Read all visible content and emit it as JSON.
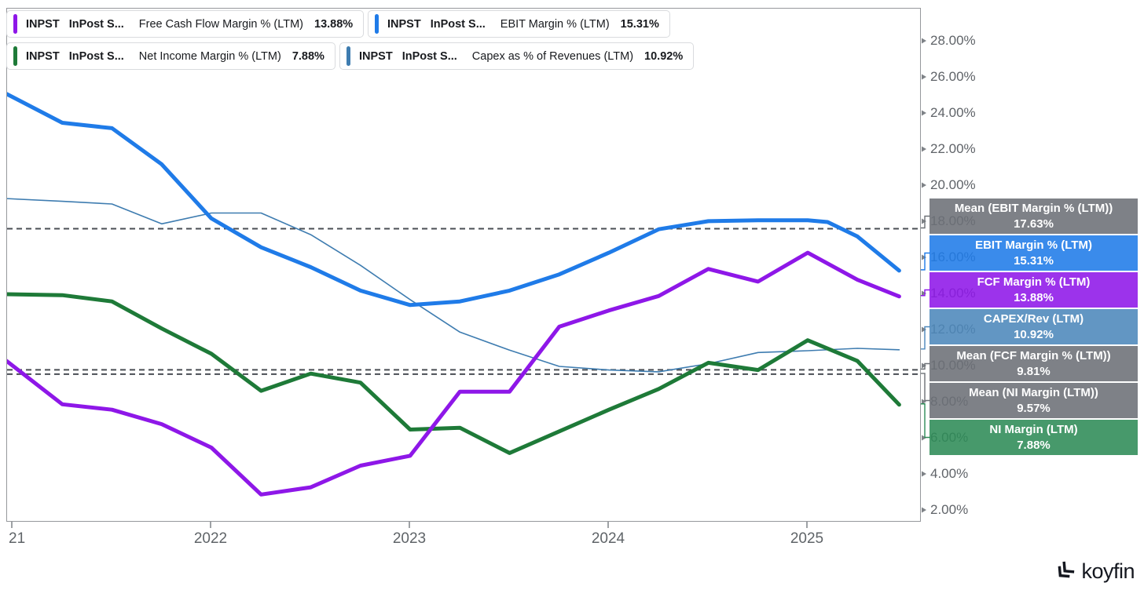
{
  "legend": {
    "items": [
      {
        "ticker": "INPST",
        "company": "InPost S...",
        "metric": "Free Cash Flow Margin % (LTM)",
        "value": "13.88%",
        "accent": "#8e17e8"
      },
      {
        "ticker": "INPST",
        "company": "InPost S...",
        "metric": "EBIT Margin % (LTM)",
        "value": "15.31%",
        "accent": "#1f7be8"
      },
      {
        "ticker": "INPST",
        "company": "InPost S...",
        "metric": "Net Income Margin % (LTM)",
        "value": "7.88%",
        "accent": "#1e7a38"
      },
      {
        "ticker": "INPST",
        "company": "InPost S...",
        "metric": "Capex as % of Revenues (LTM)",
        "value": "10.92%",
        "accent": "#3e7cb0"
      }
    ]
  },
  "side_labels": [
    {
      "title": "Mean (EBIT Margin % (LTM))",
      "value": "17.63%",
      "value_num": 17.63,
      "color": "#6c7076"
    },
    {
      "title": "EBIT Margin % (LTM)",
      "value": "15.31%",
      "value_num": 15.31,
      "color": "#1f7be8"
    },
    {
      "title": "FCF Margin % (LTM)",
      "value": "13.88%",
      "value_num": 13.88,
      "color": "#8e17e8"
    },
    {
      "title": "CAPEX/Rev (LTM)",
      "value": "10.92%",
      "value_num": 10.92,
      "color": "#4c87bb"
    },
    {
      "title": "Mean (FCF Margin % (LTM))",
      "value": "9.81%",
      "value_num": 9.81,
      "color": "#6c7076"
    },
    {
      "title": "Mean (NI Margin (LTM))",
      "value": "9.57%",
      "value_num": 9.57,
      "color": "#6c7076"
    },
    {
      "title": "NI Margin (LTM)",
      "value": "7.88%",
      "value_num": 7.88,
      "color": "#2e8b57"
    }
  ],
  "chart_data": {
    "type": "line",
    "grid": false,
    "legend_position": "top-left",
    "y_axis": {
      "min": 2,
      "max": 28,
      "step": 2,
      "side": "right",
      "labels": [
        "28.00%",
        "26.00%",
        "24.00%",
        "22.00%",
        "20.00%",
        "18.00%",
        "16.00%",
        "14.00%",
        "12.00%",
        "10.00%",
        "8.00%",
        "6.00%",
        "4.00%",
        "2.00%"
      ],
      "values": [
        28,
        26,
        24,
        22,
        20,
        18,
        16,
        14,
        12,
        10,
        8,
        6,
        4,
        2
      ]
    },
    "x_axis": {
      "ticks": [
        {
          "label": "21",
          "year": 2021
        },
        {
          "label": "2022",
          "year": 2022
        },
        {
          "label": "2023",
          "year": 2023
        },
        {
          "label": "2024",
          "year": 2024
        },
        {
          "label": "2025",
          "year": 2025
        }
      ],
      "range": [
        2020.97,
        2025.55
      ]
    },
    "series": [
      {
        "name": "Capex as % of Revenues (LTM)",
        "color": "#3e7cb0",
        "width": 1.6,
        "points": [
          [
            2020.97,
            19.3
          ],
          [
            2021.25,
            19.15
          ],
          [
            2021.5,
            19.0
          ],
          [
            2021.75,
            17.9
          ],
          [
            2022.0,
            18.5
          ],
          [
            2022.25,
            18.5
          ],
          [
            2022.5,
            17.3
          ],
          [
            2022.75,
            15.6
          ],
          [
            2023.0,
            13.7
          ],
          [
            2023.25,
            11.9
          ],
          [
            2023.5,
            10.9
          ],
          [
            2023.75,
            10.0
          ],
          [
            2024.0,
            9.8
          ],
          [
            2024.25,
            9.7
          ],
          [
            2024.5,
            10.15
          ],
          [
            2024.75,
            10.77
          ],
          [
            2025.0,
            10.87
          ],
          [
            2025.25,
            11.0
          ],
          [
            2025.46,
            10.92
          ]
        ]
      },
      {
        "name": "Net Income Margin % (LTM)",
        "color": "#1e7a38",
        "width": 5,
        "points": [
          [
            2020.97,
            14.0
          ],
          [
            2021.25,
            13.95
          ],
          [
            2021.5,
            13.6
          ],
          [
            2021.75,
            12.1
          ],
          [
            2022.0,
            10.7
          ],
          [
            2022.25,
            8.65
          ],
          [
            2022.5,
            9.6
          ],
          [
            2022.75,
            9.1
          ],
          [
            2023.0,
            6.5
          ],
          [
            2023.25,
            6.6
          ],
          [
            2023.5,
            5.2
          ],
          [
            2023.75,
            6.4
          ],
          [
            2024.0,
            7.6
          ],
          [
            2024.25,
            8.75
          ],
          [
            2024.5,
            10.2
          ],
          [
            2024.75,
            9.8
          ],
          [
            2025.0,
            11.45
          ],
          [
            2025.25,
            10.3
          ],
          [
            2025.46,
            7.88
          ]
        ]
      },
      {
        "name": "Free Cash Flow Margin % (LTM)",
        "color": "#8e17e8",
        "width": 5,
        "points": [
          [
            2020.97,
            10.3
          ],
          [
            2021.25,
            7.9
          ],
          [
            2021.5,
            7.6
          ],
          [
            2021.75,
            6.8
          ],
          [
            2022.0,
            5.5
          ],
          [
            2022.25,
            2.9
          ],
          [
            2022.5,
            3.3
          ],
          [
            2022.75,
            4.5
          ],
          [
            2023.0,
            5.05
          ],
          [
            2023.25,
            8.6
          ],
          [
            2023.5,
            8.6
          ],
          [
            2023.75,
            12.2
          ],
          [
            2024.0,
            13.1
          ],
          [
            2024.25,
            13.9
          ],
          [
            2024.5,
            15.4
          ],
          [
            2024.75,
            14.7
          ],
          [
            2025.0,
            16.3
          ],
          [
            2025.25,
            14.8
          ],
          [
            2025.46,
            13.88
          ]
        ]
      },
      {
        "name": "EBIT Margin % (LTM)",
        "color": "#1f7be8",
        "width": 5,
        "points": [
          [
            2020.97,
            25.1
          ],
          [
            2021.25,
            23.5
          ],
          [
            2021.5,
            23.2
          ],
          [
            2021.75,
            21.2
          ],
          [
            2022.0,
            18.2
          ],
          [
            2022.25,
            16.6
          ],
          [
            2022.5,
            15.5
          ],
          [
            2022.75,
            14.2
          ],
          [
            2023.0,
            13.4
          ],
          [
            2023.25,
            13.6
          ],
          [
            2023.5,
            14.2
          ],
          [
            2023.75,
            15.1
          ],
          [
            2024.0,
            16.3
          ],
          [
            2024.25,
            17.6
          ],
          [
            2024.5,
            18.05
          ],
          [
            2024.75,
            18.1
          ],
          [
            2025.0,
            18.1
          ],
          [
            2025.1,
            18.0
          ],
          [
            2025.25,
            17.2
          ],
          [
            2025.46,
            15.31
          ]
        ]
      }
    ],
    "mean_lines": [
      {
        "name": "Mean (EBIT Margin % (LTM))",
        "value": 17.63
      },
      {
        "name": "Mean (FCF Margin % (LTM))",
        "value": 9.81
      },
      {
        "name": "Mean (NI Margin (LTM))",
        "value": 9.57
      }
    ],
    "mean_line_color": "#4a4e54"
  },
  "branding": {
    "logo_text": "koyfin"
  }
}
